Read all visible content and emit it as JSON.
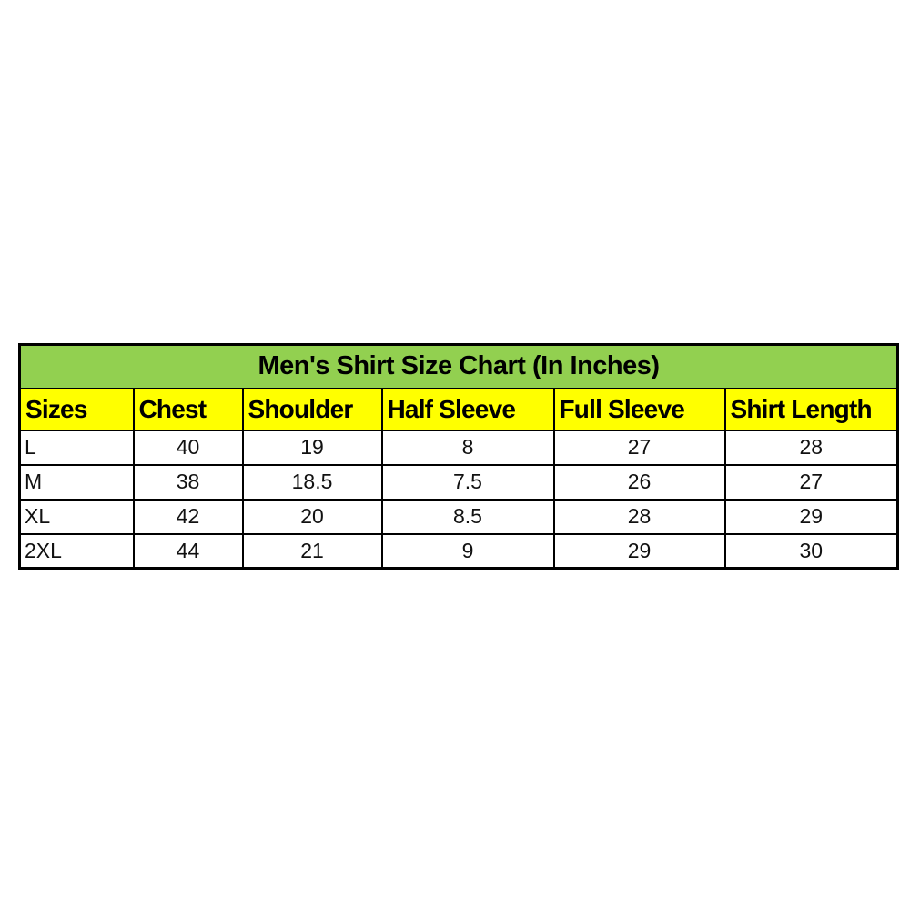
{
  "colors": {
    "title_bg": "#92d050",
    "header_bg": "#ffff00",
    "border": "#000000",
    "row_bg": "#ffffff",
    "text": "#111111",
    "page_bg": "#ffffff"
  },
  "chart_data": {
    "type": "table",
    "title": "Men's Shirt Size Chart (In Inches)",
    "columns": [
      "Sizes",
      "Chest",
      "Shoulder",
      "Half Sleeve",
      "Full Sleeve",
      "Shirt Length"
    ],
    "rows": [
      [
        "L",
        "40",
        "19",
        "8",
        "27",
        "28"
      ],
      [
        "M",
        "38",
        "18.5",
        "7.5",
        "26",
        "27"
      ],
      [
        "XL",
        "42",
        "20",
        "8.5",
        "28",
        "29"
      ],
      [
        "2XL",
        "44",
        "21",
        "9",
        "29",
        "30"
      ]
    ],
    "units": "inches",
    "layout": "title row spans all columns; header row yellow; body rows white; black grid borders"
  }
}
